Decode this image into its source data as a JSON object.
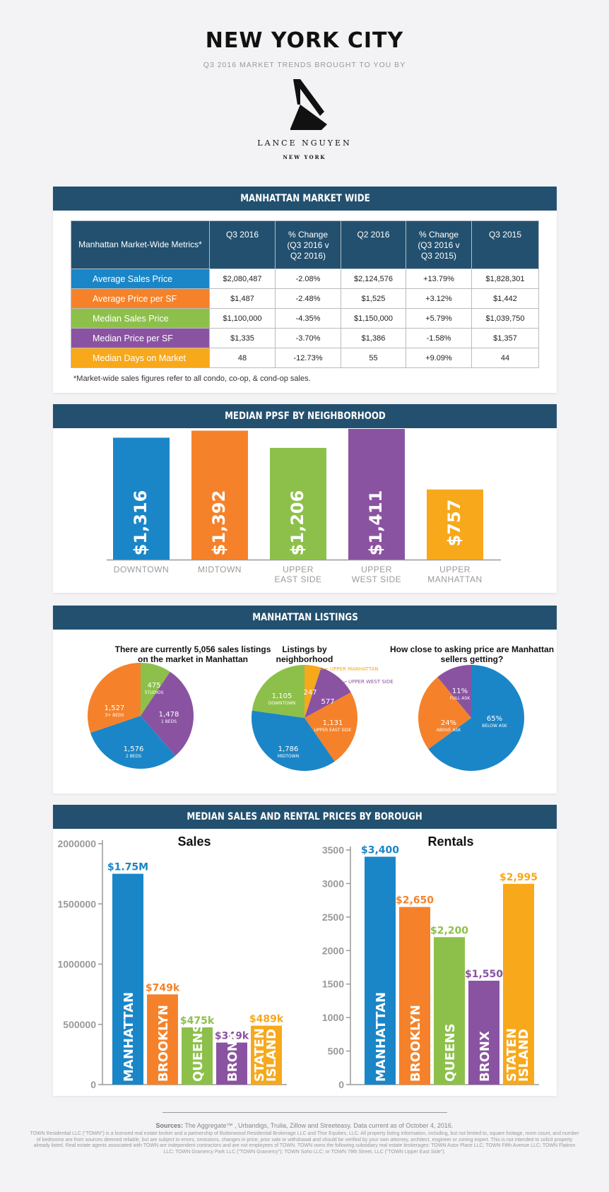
{
  "header": {
    "title": "NEW YORK CITY",
    "subtitle": "Q3 2016 MARKET TRENDS BROUGHT TO YOU BY",
    "logo_name": "LANCE NGUYEN",
    "logo_city": "NEW YORK"
  },
  "colors": {
    "navy": "#23506e",
    "blue": "#1a86c8",
    "orange": "#f5822a",
    "green": "#8dc04a",
    "purple": "#8a53a1",
    "yellow": "#f7a81b"
  },
  "market_wide": {
    "heading": "MANHATTAN MARKET WIDE",
    "columns": [
      "Manhattan Market-Wide Metrics*",
      "Q3 2016",
      "% Change (Q3 2016 v Q2 2016)",
      "Q2 2016",
      "% Change (Q3 2016 v Q3 2015)",
      "Q3 2015"
    ],
    "rows": [
      {
        "label": "Average Sales Price",
        "color": "#1a86c8",
        "values": [
          "$2,080,487",
          "-2.08%",
          "$2,124,576",
          "+13.79%",
          "$1,828,301"
        ]
      },
      {
        "label": "Average Price per SF",
        "color": "#f5822a",
        "values": [
          "$1,487",
          "-2.48%",
          "$1,525",
          "+3.12%",
          "$1,442"
        ]
      },
      {
        "label": "Median Sales Price",
        "color": "#8dc04a",
        "values": [
          "$1,100,000",
          "-4.35%",
          "$1,150,000",
          "+5.79%",
          "$1,039,750"
        ]
      },
      {
        "label": "Median Price per SF",
        "color": "#8a53a1",
        "values": [
          "$1,335",
          "-3.70%",
          "$1,386",
          "-1.58%",
          "$1,357"
        ]
      },
      {
        "label": "Median Days on Market",
        "color": "#f7a81b",
        "values": [
          "48",
          "-12.73%",
          "55",
          "+9.09%",
          "44"
        ]
      }
    ],
    "footnote": "*Market-wide sales figures refer to all condo, co-op, & cond-op sales."
  },
  "ppsf": {
    "heading": "MEDIAN PPSF BY NEIGHBORHOOD"
  },
  "listings": {
    "heading": "MANHATTAN LISTINGS"
  },
  "borough": {
    "heading": "MEDIAN SALES AND RENTAL PRICES BY BOROUGH"
  },
  "chart_data": [
    {
      "type": "bar",
      "title": "Median PPSF by Neighborhood",
      "categories": [
        "DOWNTOWN",
        "MIDTOWN",
        "UPPER EAST SIDE",
        "UPPER WEST SIDE",
        "UPPER MANHATTAN"
      ],
      "values": [
        1316,
        1392,
        1206,
        1411,
        757
      ],
      "value_labels": [
        "$1,316",
        "$1,392",
        "$1,206",
        "$1,411",
        "$757"
      ],
      "colors": [
        "#1a86c8",
        "#f5822a",
        "#8dc04a",
        "#8a53a1",
        "#f7a81b"
      ],
      "ylim": [
        0,
        1411
      ]
    },
    {
      "type": "pie",
      "title": "There are currently 5,056 sales listings on the market in Manhattan",
      "slices": [
        {
          "label": "STUDIOS",
          "value": 475,
          "text": "475",
          "color": "#8dc04a"
        },
        {
          "label": "1 BEDS",
          "value": 1478,
          "text": "1,478",
          "color": "#8a53a1"
        },
        {
          "label": "2 BEDS",
          "value": 1576,
          "text": "1,576",
          "color": "#1a86c8"
        },
        {
          "label": "3+ BEDS",
          "value": 1527,
          "text": "1,527",
          "color": "#f5822a"
        }
      ]
    },
    {
      "type": "pie",
      "title": "Listings by neighborhood",
      "slices": [
        {
          "label": "UPPER MANHATTAN",
          "value": 247,
          "text": "247",
          "color": "#f7a81b"
        },
        {
          "label": "UPPER WEST SIDE",
          "value": 577,
          "text": "577",
          "color": "#8a53a1"
        },
        {
          "label": "UPPER EAST SIDE",
          "value": 1131,
          "text": "1,131",
          "color": "#f5822a"
        },
        {
          "label": "MIDTOWN",
          "value": 1786,
          "text": "1,786",
          "color": "#1a86c8"
        },
        {
          "label": "DOWNTOWN",
          "value": 1105,
          "text": "1,105",
          "color": "#8dc04a"
        }
      ]
    },
    {
      "type": "pie",
      "title": "How close to asking price are Manhattan sellers getting?",
      "slices": [
        {
          "label": "BELOW ASK",
          "value": 65,
          "text": "65%",
          "color": "#1a86c8"
        },
        {
          "label": "ABOVE ASK",
          "value": 24,
          "text": "24%",
          "color": "#f5822a"
        },
        {
          "label": "FULL ASK",
          "value": 11,
          "text": "11%",
          "color": "#8a53a1"
        }
      ]
    },
    {
      "type": "bar",
      "title": "Sales",
      "categories": [
        "MANHATTAN",
        "BROOKLYN",
        "QUEENS",
        "BRONX",
        "STATEN ISLAND"
      ],
      "values": [
        1750000,
        749000,
        475000,
        349000,
        489000
      ],
      "value_labels": [
        "$1.75M",
        "$749k",
        "$475k",
        "$349k",
        "$489k"
      ],
      "colors": [
        "#1a86c8",
        "#f5822a",
        "#8dc04a",
        "#8a53a1",
        "#f7a81b"
      ],
      "yticks": [
        "0",
        "500000",
        "1000000",
        "1500000",
        "2000000"
      ],
      "ylim": [
        0,
        2000000
      ]
    },
    {
      "type": "bar",
      "title": "Rentals",
      "categories": [
        "MANHATTAN",
        "BROOKLYN",
        "QUEENS",
        "BRONX",
        "STATEN ISLAND"
      ],
      "values": [
        3400,
        2650,
        2200,
        1550,
        2995
      ],
      "value_labels": [
        "$3,400",
        "$2,650",
        "$2,200",
        "$1,550",
        "$2,995"
      ],
      "colors": [
        "#1a86c8",
        "#f5822a",
        "#8dc04a",
        "#8a53a1",
        "#f7a81b"
      ],
      "yticks": [
        "0",
        "500",
        "1000",
        "1500",
        "2000",
        "2500",
        "3000",
        "3500"
      ],
      "ylim": [
        0,
        3500
      ]
    }
  ],
  "footer": {
    "sources_label": "Sources:",
    "sources_text": " The Aggregate™ , Urbandigs, Trulia, Zillow and Streeteasy. Data current as of October 4, 2016.",
    "disclaimer": "TOWN Residential LLC (\"TOWN\") is a licensed real estate broker and a partnership of Buttonwood Residential Brokerage LLC and Thor Equities, LLC. All property listing information, including, but not limited to, square footage, room count, and number of bedrooms are from sources deemed reliable, but are subject to errors, omissions, changes in price, prior sale or withdrawal and should be verified by your own attorney, architect, engineer or zoning expert. This is not intended to solicit property already listed. Real estate agents associated with TOWN are independent contractors and are not employees of TOWN. TOWN owns the following subsidiary real estate brokerages: TOWN Astor Place LLC; TOWN Fifth Avenue LLC; TOWN Flatiron LLC; TOWN Gramercy Park LLC (\"TOWN Gramercy\"); TOWN Soho LLC; or TOWN 79th Street, LLC (\"TOWN Upper East Side\")."
  }
}
